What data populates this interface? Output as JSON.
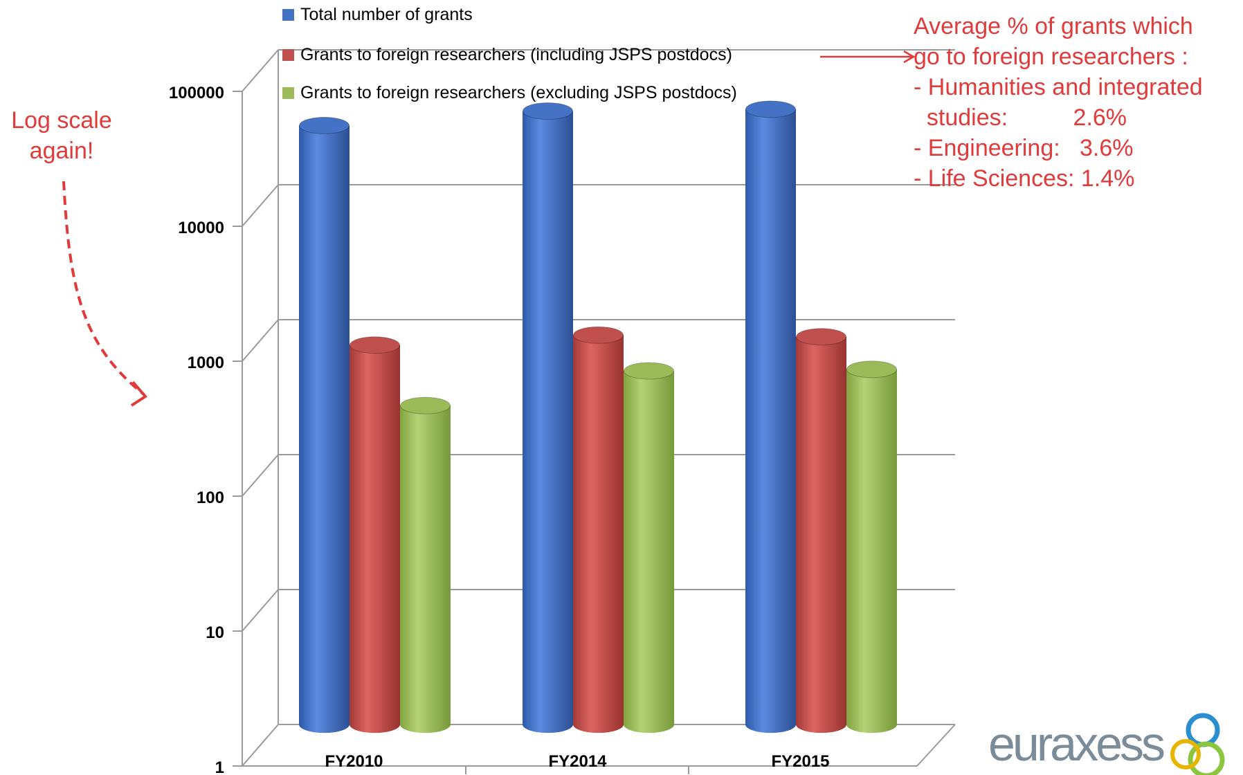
{
  "chart_data": {
    "type": "bar",
    "categories": [
      "FY2010",
      "FY2014",
      "FY2015"
    ],
    "series": [
      {
        "name": "Total number of grants",
        "color": "#4472c4",
        "values": [
          25000,
          32000,
          33000
        ]
      },
      {
        "name": "Grants to foreign researchers (including JSPS postdocs)",
        "color": "#c0504d",
        "values": [
          590,
          700,
          680
        ]
      },
      {
        "name": "Grants to foreign researchers (excluding JSPS postdocs)",
        "color": "#9bbb59",
        "values": [
          210,
          380,
          390
        ]
      }
    ],
    "y_scale": "log",
    "ylim": [
      1,
      100000
    ],
    "yticks": [
      "1",
      "10",
      "100",
      "1000",
      "10000",
      "100000"
    ],
    "grid": true,
    "legend_position": "top"
  },
  "annotations": {
    "log_scale_note": "Log scale\nagain!",
    "average_note": "Average % of grants which\ngo to foreign researchers :\n- Humanities and integrated\n  studies:          2.6%\n- Engineering:   3.6%\n- Life Sciences: 1.4%",
    "accent_color": "#e03a3a"
  },
  "logo": {
    "text": "euraxess"
  }
}
